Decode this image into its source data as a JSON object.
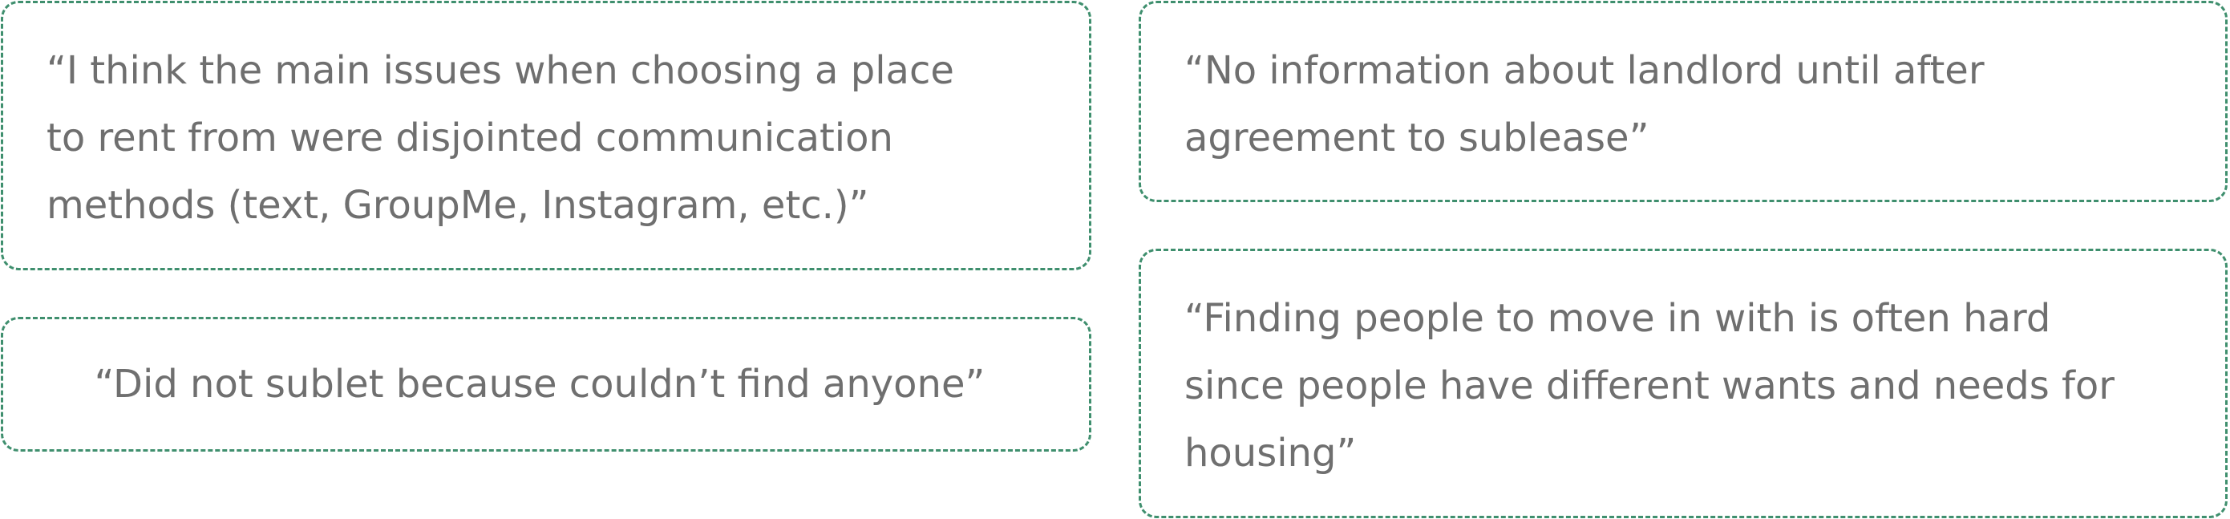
{
  "style": {
    "border_color": "#3f8f6e",
    "text_color": "#6f6f6f",
    "background": "#ffffff"
  },
  "quotes": [
    {
      "text": "“I think the main issues when choosing a place\nto rent from were disjointed communication\nmethods (text, GroupMe, Instagram, etc.)”"
    },
    {
      "text": "“No information about landlord until after\nagreement to sublease”"
    },
    {
      "text": "“Did not sublet because couldn’t find anyone”"
    },
    {
      "text": "“Finding people to move in with is often hard\nsince people have different wants and needs for\nhousing”"
    }
  ]
}
